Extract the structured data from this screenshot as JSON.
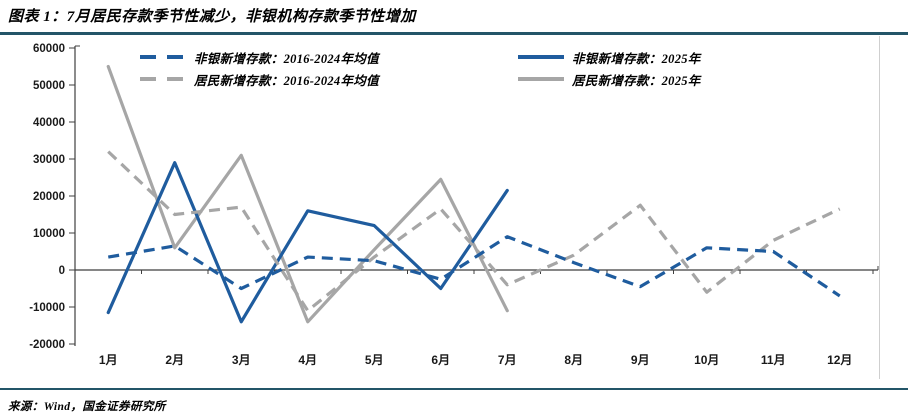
{
  "header": {
    "title": "图表 1：7月居民存款季节性减少，非银机构存款季节性增加"
  },
  "footer": {
    "source": "来源：Wind，国金证券研究所"
  },
  "colors": {
    "blue": "#1F5C9E",
    "gray": "#A6A6A6",
    "rule": "#235568",
    "axis": "#3F3F3F",
    "tick_text": "#1A1A1A",
    "right_border": "#CFCFCF"
  },
  "chart_data": {
    "type": "line",
    "title": "",
    "xlabel": "",
    "ylabel": "",
    "categories": [
      "1月",
      "2月",
      "3月",
      "4月",
      "5月",
      "6月",
      "7月",
      "8月",
      "9月",
      "10月",
      "11月",
      "12月"
    ],
    "y_ticks": [
      60000,
      50000,
      40000,
      30000,
      20000,
      10000,
      0,
      -10000,
      -20000
    ],
    "ylim": [
      -20000,
      60000
    ],
    "grid": false,
    "legend_position": "top",
    "series": [
      {
        "name": "非银新增存款：2016-2024年均值",
        "color": "#1F5C9E",
        "style": "dashed",
        "values": [
          3500,
          6500,
          -5000,
          3500,
          2500,
          -2500,
          9000,
          2000,
          -4500,
          6000,
          5000,
          -7000
        ]
      },
      {
        "name": "非银新增存款：2025年",
        "color": "#1F5C9E",
        "style": "solid",
        "values": [
          -11500,
          29000,
          -14000,
          16000,
          12000,
          -5000,
          21500
        ]
      },
      {
        "name": "居民新增存款：2016-2024年均值",
        "color": "#A6A6A6",
        "style": "dashed",
        "values": [
          32000,
          15000,
          17000,
          -11000,
          3500,
          16500,
          -4000,
          4000,
          17500,
          -6000,
          8000,
          16500
        ]
      },
      {
        "name": "居民新增存款：2025年",
        "color": "#A6A6A6",
        "style": "solid",
        "values": [
          55000,
          6000,
          31000,
          -14000,
          5500,
          24500,
          -11000
        ]
      }
    ]
  }
}
